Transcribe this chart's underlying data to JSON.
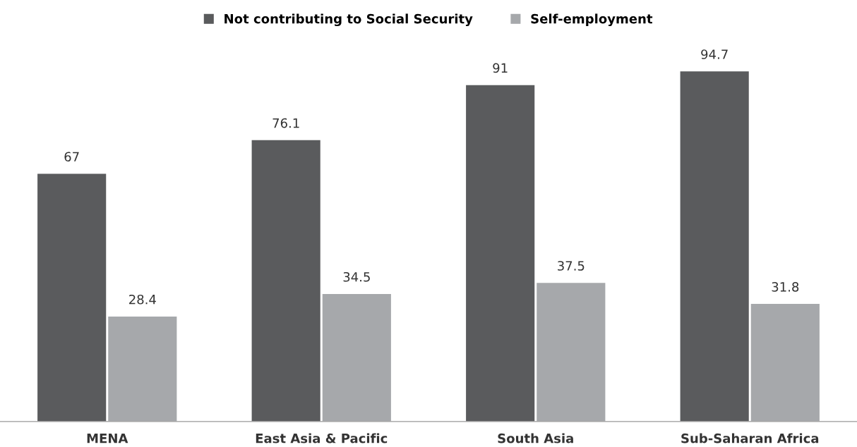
{
  "chart_data": {
    "type": "bar",
    "categories": [
      "MENA",
      "East Asia & Pacific",
      "South Asia",
      "Sub-Saharan Africa"
    ],
    "series": [
      {
        "name": "Not contributing to Social Security",
        "color": "#5a5b5d",
        "values": [
          67,
          76.1,
          91,
          94.7
        ]
      },
      {
        "name": "Self-employment",
        "color": "#a6a8ab",
        "values": [
          28.4,
          34.5,
          37.5,
          31.8
        ]
      }
    ],
    "data_labels": true,
    "legend": "top",
    "grid": false
  }
}
